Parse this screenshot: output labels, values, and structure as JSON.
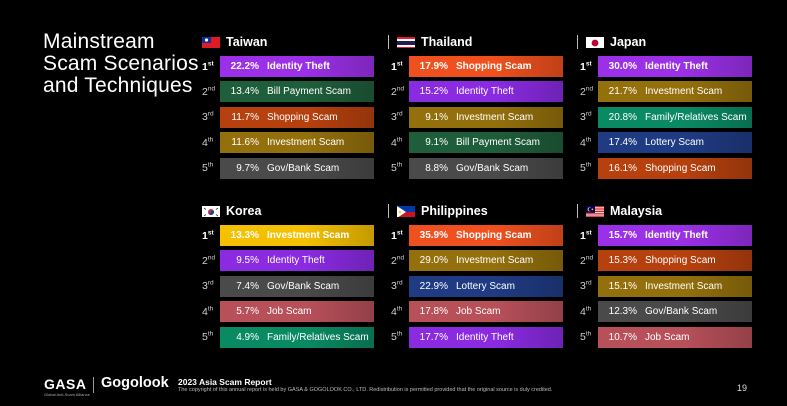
{
  "title": [
    "Mainstream",
    "Scam Scenarios",
    "and Techniques"
  ],
  "colors": {
    "Identity Theft": "#8a2be2",
    "Bill Payment Scam": "#1f5e3b",
    "Shopping Scam": "#b7410e",
    "Investment Scam": "#94700c",
    "Gov/Bank Scam": "#4a4a4a",
    "Lottery Scam": "#1f3b83",
    "Family/Relatives Scam": "#0a8a63",
    "Job Scam": "#b8505a"
  },
  "colors_first": {
    "Identity Theft": "#9b30e8",
    "Shopping Scam": "#f0501e",
    "Investment Scam": "#f5c000"
  },
  "panels": [
    {
      "country": "Taiwan",
      "flag": "taiwan-flag",
      "rows": [
        {
          "rank": "1",
          "sup": "st",
          "pct": "22.2%",
          "label": "Identity Theft"
        },
        {
          "rank": "2",
          "sup": "nd",
          "pct": "13.4%",
          "label": "Bill Payment Scam"
        },
        {
          "rank": "3",
          "sup": "rd",
          "pct": "11.7%",
          "label": "Shopping Scam"
        },
        {
          "rank": "4",
          "sup": "th",
          "pct": "11.6%",
          "label": "Investment Scam"
        },
        {
          "rank": "5",
          "sup": "th",
          "pct": "9.7%",
          "label": "Gov/Bank Scam"
        }
      ]
    },
    {
      "country": "Thailand",
      "flag": "thailand-flag",
      "rows": [
        {
          "rank": "1",
          "sup": "st",
          "pct": "17.9%",
          "label": "Shopping Scam"
        },
        {
          "rank": "2",
          "sup": "nd",
          "pct": "15.2%",
          "label": "Identity Theft"
        },
        {
          "rank": "3",
          "sup": "rd",
          "pct": "9.1%",
          "label": "Investment Scam"
        },
        {
          "rank": "4",
          "sup": "th",
          "pct": "9.1%",
          "label": "Bill Payment Scam"
        },
        {
          "rank": "5",
          "sup": "th",
          "pct": "8.8%",
          "label": "Gov/Bank Scam"
        }
      ]
    },
    {
      "country": "Japan",
      "flag": "japan-flag",
      "rows": [
        {
          "rank": "1",
          "sup": "st",
          "pct": "30.0%",
          "label": "Identity Theft"
        },
        {
          "rank": "2",
          "sup": "nd",
          "pct": "21.7%",
          "label": "Investment Scam"
        },
        {
          "rank": "3",
          "sup": "rd",
          "pct": "20.8%",
          "label": "Family/Relatives Scam"
        },
        {
          "rank": "4",
          "sup": "th",
          "pct": "17.4%",
          "label": "Lottery Scam"
        },
        {
          "rank": "5",
          "sup": "th",
          "pct": "16.1%",
          "label": "Shopping Scam"
        }
      ]
    },
    {
      "country": "Korea",
      "flag": "korea-flag",
      "rows": [
        {
          "rank": "1",
          "sup": "st",
          "pct": "13.3%",
          "label": "Investment Scam"
        },
        {
          "rank": "2",
          "sup": "nd",
          "pct": "9.5%",
          "label": "Identity Theft"
        },
        {
          "rank": "3",
          "sup": "rd",
          "pct": "7.4%",
          "label": "Gov/Bank Scam"
        },
        {
          "rank": "4",
          "sup": "th",
          "pct": "5.7%",
          "label": "Job Scam"
        },
        {
          "rank": "5",
          "sup": "th",
          "pct": "4.9%",
          "label": "Family/Relatives Scam"
        }
      ]
    },
    {
      "country": "Philippines",
      "flag": "philippines-flag",
      "rows": [
        {
          "rank": "1",
          "sup": "st",
          "pct": "35.9%",
          "label": "Shopping Scam"
        },
        {
          "rank": "2",
          "sup": "nd",
          "pct": "29.0%",
          "label": "Investment Scam"
        },
        {
          "rank": "3",
          "sup": "rd",
          "pct": "22.9%",
          "label": "Lottery Scam"
        },
        {
          "rank": "4",
          "sup": "th",
          "pct": "17.8%",
          "label": "Job Scam"
        },
        {
          "rank": "5",
          "sup": "th",
          "pct": "17.7%",
          "label": "Identity Theft"
        }
      ]
    },
    {
      "country": "Malaysia",
      "flag": "malaysia-flag",
      "rows": [
        {
          "rank": "1",
          "sup": "st",
          "pct": "15.7%",
          "label": "Identity Theft"
        },
        {
          "rank": "2",
          "sup": "nd",
          "pct": "15.3%",
          "label": "Shopping Scam"
        },
        {
          "rank": "3",
          "sup": "rd",
          "pct": "15.1%",
          "label": "Investment Scam"
        },
        {
          "rank": "4",
          "sup": "th",
          "pct": "12.3%",
          "label": "Gov/Bank Scam"
        },
        {
          "rank": "5",
          "sup": "th",
          "pct": "10.7%",
          "label": "Job Scam"
        }
      ]
    }
  ],
  "footer": {
    "gasa": "GASA",
    "gasa_sub": "Global Anti-Scam Alliance",
    "gogolook": "Gogolook",
    "report": "2023 Asia Scam Report",
    "copyright": "The copyright of this annual report is held by GASA & GOGOLOOK CO., LTD. Redistribution is permitted provided that the original source is duly credited.",
    "page": "19"
  }
}
